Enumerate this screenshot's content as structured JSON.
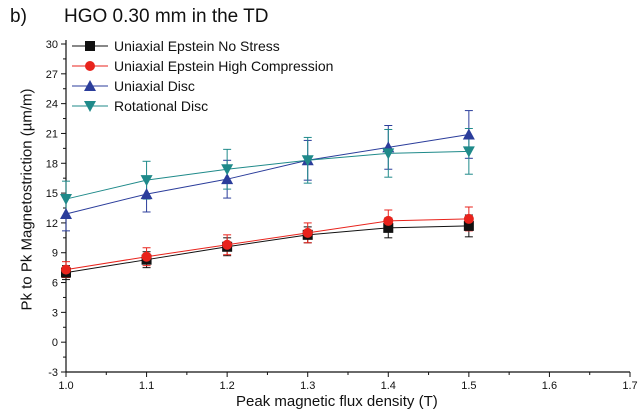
{
  "panel_label": "b)",
  "chart_data": {
    "type": "line",
    "title": "HGO 0.30 mm in the TD",
    "xlabel": "Peak magnetic flux density (T)",
    "ylabel": "Pk to Pk Magnetostriction (µm/m)",
    "xlim": [
      1.0,
      1.7
    ],
    "ylim": [
      -3,
      30
    ],
    "x_ticks": [
      "1.0",
      "1.1",
      "1.2",
      "1.3",
      "1.4",
      "1.5",
      "1.6",
      "1.7"
    ],
    "y_ticks": [
      "-3",
      "0",
      "3",
      "6",
      "9",
      "12",
      "15",
      "18",
      "21",
      "24",
      "27",
      "30"
    ],
    "grid": false,
    "legend_position": "top-left",
    "x": [
      1.0,
      1.1,
      1.2,
      1.3,
      1.4,
      1.5
    ],
    "series": [
      {
        "name": "Uniaxial Epstein No Stress",
        "color": "#111111",
        "marker": "square",
        "values": [
          7.0,
          8.3,
          9.6,
          10.8,
          11.5,
          11.7
        ],
        "errors": [
          0.7,
          0.8,
          0.9,
          0.8,
          1.0,
          1.1
        ]
      },
      {
        "name": "Uniaxial Epstein High Compression",
        "color": "#e8231c",
        "marker": "circle",
        "values": [
          7.3,
          8.6,
          9.8,
          11.0,
          12.2,
          12.4
        ],
        "errors": [
          0.8,
          0.9,
          1.0,
          1.0,
          1.1,
          1.2
        ]
      },
      {
        "name": "Uniaxial Disc",
        "color": "#2b3d9b",
        "marker": "triangle-up",
        "values": [
          12.9,
          14.9,
          16.4,
          18.3,
          19.6,
          20.9
        ],
        "errors": [
          1.7,
          1.8,
          1.9,
          2.0,
          2.2,
          2.4
        ]
      },
      {
        "name": "Rotational Disc",
        "color": "#1f8a8a",
        "marker": "triangle-down",
        "values": [
          14.4,
          16.3,
          17.4,
          18.3,
          19.0,
          19.2
        ],
        "errors": [
          1.8,
          1.9,
          2.0,
          2.3,
          2.4,
          2.3
        ]
      }
    ]
  }
}
